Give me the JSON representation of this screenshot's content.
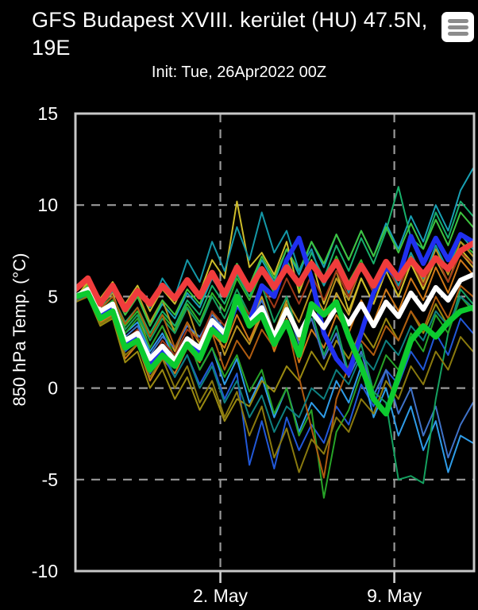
{
  "header": {
    "title": "GFS Budapest XVIII. kerület (HU) 47.5N, 19E",
    "init": "Init: Tue, 26Apr2022 00Z",
    "menu_icon": "hamburger-menu"
  },
  "colors": {
    "background": "#000000",
    "text": "#ffffff",
    "grid": "#999999",
    "frame": "#c8c8c8",
    "ensemble_mean": "#f03c3c",
    "operational_run": "#ffffff",
    "control_run": "#0ccb2f",
    "parallel_run": "#2030f0"
  },
  "chart_data": {
    "type": "line",
    "title": "GFS Budapest XVIII. kerület (HU) 47.5N, 19E",
    "subtitle": "Init: Tue, 26Apr2022 00Z",
    "ylabel": "850 hPa Temp. (°C)",
    "ylim": [
      -10,
      15
    ],
    "yticks": [
      15,
      10,
      5,
      0,
      -5,
      -10
    ],
    "ygrid": [
      10,
      5,
      0,
      -5
    ],
    "xlim": [
      0,
      385
    ],
    "xticks": [
      {
        "label": "2. May",
        "hour": 140
      },
      {
        "label": "9. May",
        "hour": 308
      }
    ],
    "grid": "dashed",
    "legend": "none",
    "hours": [
      0,
      12,
      24,
      36,
      48,
      60,
      72,
      84,
      96,
      108,
      120,
      132,
      144,
      156,
      168,
      180,
      192,
      204,
      216,
      228,
      240,
      252,
      264,
      276,
      288,
      300,
      312,
      324,
      336,
      348,
      360,
      372,
      384
    ],
    "highlights": [
      {
        "name": "parallel-run",
        "color": "#2030f0",
        "width": 6,
        "values": [
          5.0,
          5.2,
          4.0,
          4.4,
          2.4,
          2.8,
          1.2,
          2.0,
          1.4,
          2.6,
          2.0,
          3.4,
          2.8,
          4.6,
          3.6,
          5.6,
          5.0,
          7.0,
          8.2,
          6.0,
          3.0,
          1.6,
          0.8,
          3.0,
          5.2,
          6.6,
          6.0,
          8.3,
          6.8,
          8.2,
          7.0,
          8.4,
          8.0
        ]
      },
      {
        "name": "operational-run",
        "color": "#ffffff",
        "width": 6,
        "values": [
          5.0,
          5.4,
          4.2,
          4.6,
          2.6,
          3.0,
          1.6,
          2.3,
          1.5,
          2.7,
          2.2,
          3.7,
          3.0,
          4.8,
          3.6,
          4.4,
          2.8,
          4.3,
          2.9,
          4.2,
          3.3,
          4.4,
          3.5,
          4.6,
          3.4,
          4.7,
          3.9,
          5.2,
          4.3,
          5.5,
          4.8,
          5.9,
          6.2
        ]
      },
      {
        "name": "control-run",
        "color": "#0ccb2f",
        "width": 7,
        "values": [
          5.0,
          5.2,
          3.8,
          4.2,
          2.2,
          2.6,
          1.0,
          1.8,
          1.2,
          2.4,
          1.6,
          3.2,
          2.6,
          5.0,
          3.4,
          4.0,
          2.4,
          3.6,
          1.8,
          4.6,
          4.0,
          4.7,
          2.8,
          1.2,
          -0.6,
          -1.4,
          0.6,
          2.6,
          3.4,
          2.8,
          3.6,
          4.2,
          4.4
        ]
      },
      {
        "name": "ensemble-mean",
        "color": "#f03c3c",
        "width": 7.5,
        "values": [
          5.4,
          6.0,
          4.6,
          5.6,
          4.3,
          5.3,
          4.6,
          5.6,
          4.9,
          5.9,
          5.0,
          6.3,
          5.1,
          6.6,
          5.4,
          6.5,
          5.5,
          6.6,
          5.7,
          6.8,
          5.9,
          6.9,
          5.5,
          6.7,
          5.6,
          6.9,
          6.0,
          7.0,
          6.2,
          7.1,
          6.5,
          7.5,
          7.9
        ]
      }
    ],
    "members": [
      {
        "color": "#c9a227",
        "values": [
          4.9,
          5.6,
          4.5,
          5.2,
          3.2,
          4.0,
          2.2,
          3.4,
          2.0,
          3.6,
          2.4,
          4.2,
          3.0,
          4.8,
          3.4,
          5.0,
          3.0,
          4.6,
          2.6,
          4.4,
          3.2,
          5.2,
          4.0,
          6.0,
          4.6,
          6.4,
          5.0,
          6.8,
          5.4,
          7.0,
          5.8,
          7.4,
          6.6
        ]
      },
      {
        "color": "#d07818",
        "values": [
          4.8,
          5.2,
          3.6,
          4.0,
          1.6,
          2.4,
          0.4,
          1.6,
          0.8,
          2.2,
          1.4,
          3.0,
          2.2,
          4.0,
          2.6,
          4.2,
          2.0,
          3.8,
          1.4,
          3.2,
          2.2,
          4.0,
          3.0,
          4.8,
          3.6,
          5.4,
          4.2,
          6.0,
          4.8,
          6.6,
          5.2,
          7.0,
          6.2
        ]
      },
      {
        "color": "#18a0b4",
        "values": [
          4.7,
          5.4,
          4.6,
          5.5,
          4.0,
          5.0,
          3.4,
          4.6,
          3.8,
          5.2,
          4.4,
          6.0,
          5.0,
          6.6,
          5.4,
          7.0,
          5.8,
          7.6,
          6.2,
          8.0,
          6.6,
          8.4,
          7.0,
          8.6,
          7.2,
          9.0,
          7.6,
          9.4,
          8.0,
          10.0,
          8.6,
          10.8,
          12.0
        ]
      },
      {
        "color": "#2158d8",
        "values": [
          4.8,
          5.0,
          3.8,
          4.2,
          2.0,
          2.6,
          0.8,
          1.8,
          0.6,
          1.8,
          0.2,
          1.4,
          -0.6,
          0.8,
          -4.2,
          -1.8,
          -4.4,
          -1.6,
          -3.4,
          -2.0,
          -3.0,
          -1.0,
          -2.0,
          0.2,
          -1.0,
          1.0,
          0.2,
          2.0,
          1.0,
          3.0,
          1.8,
          3.8,
          3.0
        ]
      },
      {
        "color": "#2e9ce8",
        "values": [
          4.8,
          5.2,
          4.2,
          4.8,
          3.0,
          3.6,
          2.0,
          3.0,
          1.6,
          2.8,
          1.0,
          2.2,
          0.2,
          1.6,
          -0.8,
          0.6,
          -1.6,
          0.0,
          -2.4,
          -0.8,
          -1.6,
          0.4,
          -0.8,
          1.2,
          -1.6,
          0.0,
          -2.6,
          -1.0,
          -3.4,
          -1.8,
          -4.6,
          -2.6,
          -3.0
        ]
      },
      {
        "color": "#2db82d",
        "values": [
          4.9,
          5.5,
          4.4,
          5.0,
          3.4,
          4.2,
          2.8,
          4.0,
          3.2,
          4.6,
          3.6,
          5.2,
          4.2,
          6.0,
          4.8,
          6.4,
          5.2,
          6.8,
          5.4,
          7.0,
          5.6,
          7.2,
          5.8,
          7.0,
          5.2,
          6.6,
          5.6,
          7.2,
          6.0,
          7.6,
          6.4,
          8.0,
          7.4
        ]
      },
      {
        "color": "#9a8a10",
        "values": [
          4.7,
          5.0,
          3.4,
          3.8,
          1.4,
          2.0,
          0.0,
          1.0,
          -0.6,
          0.6,
          -1.2,
          0.0,
          -1.8,
          -0.6,
          -1.0,
          0.4,
          -0.2,
          1.2,
          0.4,
          2.0,
          1.0,
          2.6,
          1.6,
          3.2,
          2.2,
          3.8,
          2.6,
          4.2,
          3.0,
          4.6,
          3.4,
          5.0,
          4.4
        ]
      },
      {
        "color": "#17b06a",
        "values": [
          4.8,
          5.4,
          4.4,
          5.0,
          3.6,
          4.4,
          3.0,
          4.2,
          3.4,
          4.8,
          4.0,
          5.6,
          4.6,
          6.2,
          5.0,
          6.6,
          5.2,
          7.0,
          5.6,
          7.4,
          6.0,
          7.8,
          6.4,
          8.2,
          6.8,
          8.6,
          11.0,
          8.2,
          7.6,
          9.6,
          8.2,
          10.2,
          9.4
        ]
      },
      {
        "color": "#3f72c8",
        "values": [
          4.8,
          5.1,
          4.1,
          4.5,
          2.8,
          3.4,
          1.8,
          2.8,
          2.2,
          3.4,
          2.8,
          4.0,
          3.2,
          4.6,
          3.4,
          4.8,
          3.0,
          4.4,
          2.4,
          3.8,
          1.6,
          3.0,
          0.6,
          2.0,
          -0.4,
          1.0,
          -1.4,
          0.0,
          -2.6,
          -1.0,
          -3.8,
          -2.0,
          -0.8
        ]
      },
      {
        "color": "#b8941f",
        "values": [
          4.9,
          5.7,
          4.8,
          5.6,
          4.2,
          5.2,
          3.6,
          4.8,
          3.0,
          4.4,
          2.4,
          3.8,
          1.8,
          3.4,
          2.4,
          4.0,
          3.0,
          4.8,
          3.6,
          5.4,
          4.2,
          6.0,
          4.8,
          6.6,
          5.2,
          7.0,
          5.6,
          7.2,
          5.8,
          7.6,
          6.2,
          8.0,
          7.2
        ]
      },
      {
        "color": "#14a05f",
        "values": [
          4.7,
          5.2,
          4.0,
          4.6,
          3.2,
          4.0,
          2.6,
          3.8,
          3.0,
          4.4,
          3.4,
          5.0,
          3.8,
          5.4,
          4.0,
          5.6,
          3.6,
          5.0,
          2.8,
          4.2,
          1.8,
          3.4,
          0.8,
          2.4,
          -0.2,
          -0.8,
          -5.0,
          -4.8,
          -5.2,
          -0.6,
          3.0,
          5.4,
          4.6
        ]
      },
      {
        "color": "#27a327",
        "values": [
          4.8,
          5.3,
          4.2,
          4.8,
          3.0,
          3.8,
          2.2,
          3.4,
          1.6,
          2.8,
          1.0,
          2.2,
          0.6,
          1.8,
          -0.2,
          1.0,
          -1.4,
          0.0,
          -2.6,
          -1.2,
          -6.0,
          -2.4,
          -1.2,
          0.8,
          0.0,
          1.8,
          1.0,
          3.0,
          2.0,
          4.0,
          3.0,
          5.0,
          4.2
        ]
      },
      {
        "color": "#b05c10",
        "values": [
          4.8,
          5.4,
          4.3,
          5.0,
          3.5,
          4.4,
          2.8,
          4.0,
          2.2,
          3.6,
          1.6,
          3.0,
          1.0,
          2.6,
          1.6,
          3.2,
          2.2,
          3.6,
          0.6,
          -2.2,
          -4.9,
          -0.6,
          1.2,
          2.6,
          1.8,
          3.4,
          2.6,
          4.2,
          3.2,
          5.0,
          3.8,
          5.6,
          5.0
        ]
      },
      {
        "color": "#8a7a0e",
        "values": [
          4.7,
          5.0,
          3.5,
          3.9,
          1.8,
          2.4,
          0.6,
          1.6,
          0.0,
          1.2,
          -0.8,
          0.4,
          -1.6,
          -0.2,
          -2.6,
          -1.0,
          -3.8,
          -2.2,
          -4.6,
          -2.8,
          -3.6,
          -1.6,
          -2.4,
          -0.6,
          -1.4,
          0.4,
          -0.6,
          1.2,
          0.2,
          2.0,
          1.0,
          2.8,
          2.0
        ]
      },
      {
        "color": "#0e8080",
        "values": [
          4.8,
          5.1,
          3.9,
          4.4,
          2.4,
          3.0,
          1.2,
          2.2,
          0.6,
          1.8,
          0.0,
          1.2,
          -0.8,
          0.4,
          -1.6,
          -0.4,
          -2.4,
          -1.0,
          -1.6,
          0.0,
          -0.6,
          1.0,
          0.2,
          1.8,
          1.0,
          2.6,
          1.8,
          3.4,
          2.6,
          4.2,
          3.4,
          5.0,
          4.4
        ]
      },
      {
        "color": "#3ec43e",
        "values": [
          4.9,
          5.6,
          4.6,
          5.4,
          4.0,
          5.0,
          3.4,
          4.8,
          4.0,
          5.4,
          4.6,
          6.2,
          5.2,
          6.8,
          5.6,
          7.2,
          6.0,
          7.6,
          6.4,
          8.0,
          6.8,
          8.4,
          7.0,
          8.6,
          7.2,
          8.8,
          7.4,
          9.0,
          7.6,
          9.2,
          7.8,
          9.6,
          8.8
        ]
      },
      {
        "color": "#cdbc2a",
        "values": [
          4.9,
          5.8,
          4.9,
          5.8,
          4.6,
          5.6,
          4.2,
          5.4,
          4.6,
          6.0,
          5.2,
          7.0,
          6.0,
          10.2,
          6.6,
          7.4,
          6.2,
          8.0,
          5.2,
          7.0,
          4.6,
          6.4,
          4.2,
          6.0,
          4.6,
          6.4,
          5.0,
          6.8,
          5.4,
          7.2,
          5.8,
          7.6,
          6.8
        ]
      },
      {
        "color": "#1498a8",
        "values": [
          4.8,
          5.3,
          4.5,
          5.3,
          4.2,
          5.4,
          4.4,
          6.0,
          5.0,
          7.0,
          5.8,
          8.0,
          6.4,
          8.8,
          7.0,
          9.6,
          7.4,
          8.6,
          6.4,
          7.6,
          5.6,
          7.0,
          5.2,
          6.8,
          5.4,
          7.0,
          5.6,
          7.4,
          6.0,
          7.8,
          6.4,
          8.4,
          7.6
        ]
      },
      {
        "color": "#a03818",
        "values": [
          4.8,
          5.3,
          4.0,
          4.6,
          2.6,
          3.2,
          1.4,
          2.6,
          1.8,
          3.2,
          2.6,
          4.2,
          3.4,
          5.0,
          4.0,
          5.6,
          4.4,
          6.0,
          4.6,
          6.2,
          4.8,
          6.4,
          5.0,
          6.6,
          5.2,
          6.8,
          5.4,
          7.0,
          5.6,
          7.2,
          5.8,
          7.4,
          6.8
        ]
      }
    ]
  }
}
